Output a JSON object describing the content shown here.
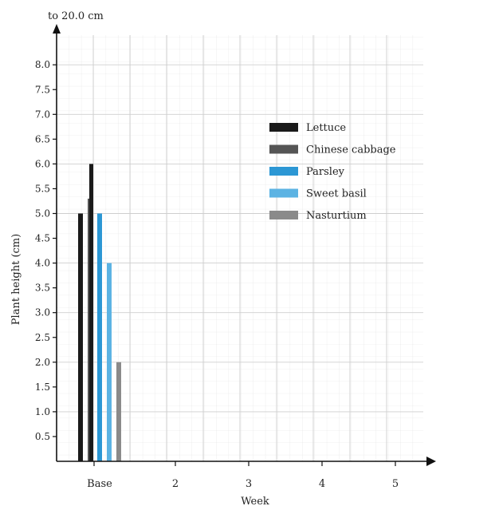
{
  "chart_data": {
    "type": "bar",
    "title": "",
    "axis_break_label": "to 20.0 cm",
    "xlabel": "Week",
    "ylabel": "Plant height (cm)",
    "categories": [
      "Base",
      "2",
      "3",
      "4",
      "5"
    ],
    "ylim": [
      0,
      8.5
    ],
    "yticks": [
      "0.5",
      "1.0",
      "1.5",
      "2.0",
      "2.5",
      "3.0",
      "3.5",
      "4.0",
      "4.5",
      "5.0",
      "5.5",
      "6.0",
      "6.5",
      "7.0",
      "7.5",
      "8.0"
    ],
    "grid": true,
    "legend_position": "top-right",
    "series": [
      {
        "name": "Lettuce",
        "color": "#1a1a1a",
        "values": [
          5.0,
          null,
          null,
          null,
          null
        ]
      },
      {
        "name": "Chinese cabbage",
        "color": "#555555",
        "values": [
          5.3,
          null,
          null,
          null,
          null
        ]
      },
      {
        "name": "Parsley",
        "color": "#2c97d4",
        "values": [
          5.0,
          null,
          null,
          null,
          null
        ]
      },
      {
        "name": "Sweet basil",
        "color": "#5cb3e3",
        "values": [
          4.0,
          null,
          null,
          null,
          null
        ]
      },
      {
        "name": "Nasturtium",
        "color": "#8a8a8a",
        "values": [
          2.0,
          null,
          null,
          null,
          null
        ]
      }
    ],
    "annotations": [
      {
        "series": "Lettuce",
        "note": "extends to 20.0 cm",
        "value": 6.0
      }
    ]
  }
}
